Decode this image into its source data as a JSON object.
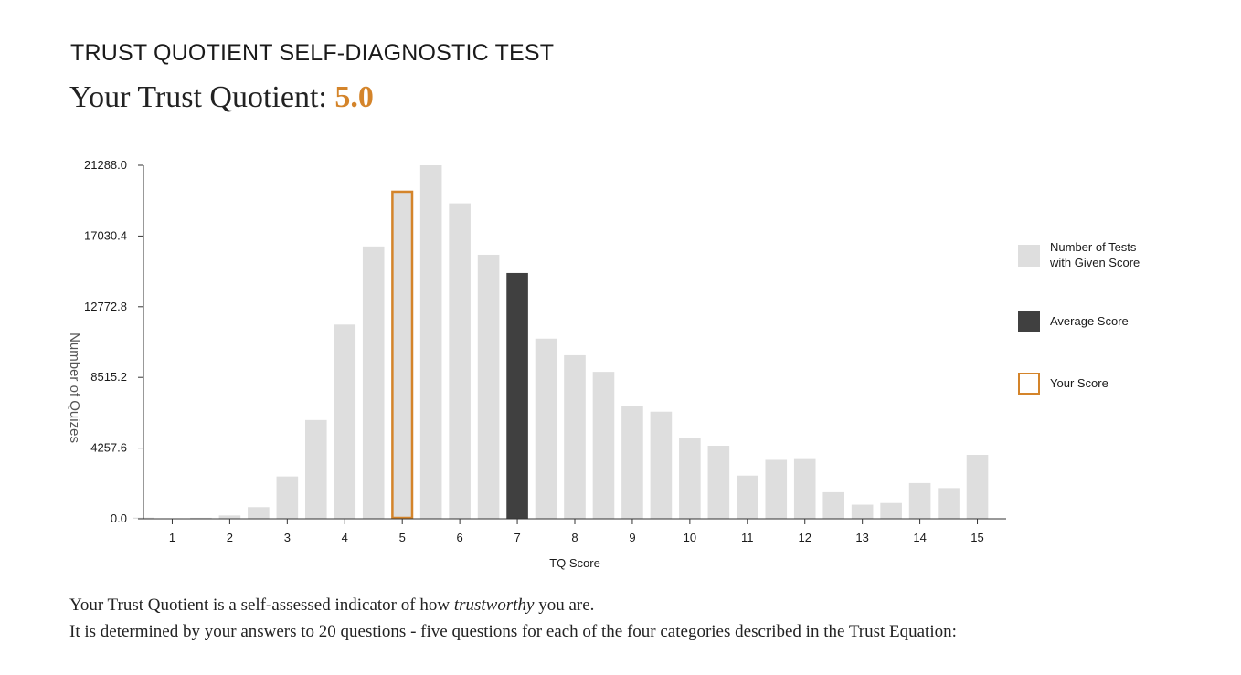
{
  "header": {
    "page_title": "TRUST QUOTIENT SELF-DIAGNOSTIC TEST",
    "tq_label": "Your Trust Quotient: ",
    "tq_value": "5.0"
  },
  "legend": {
    "tests": "Number of Tests with Given Score",
    "average": "Average Score",
    "yours": "Your Score"
  },
  "description": {
    "line1_before": "Your Trust Quotient is a self-assessed indicator of how ",
    "line1_emph": "trustworthy",
    "line1_after": " you are.",
    "line2": "It is determined by your answers to 20 questions - five questions for each of the four categories described in the Trust Equation:"
  },
  "colors": {
    "bar": "#dedede",
    "average": "#404040",
    "accent": "#d4842a",
    "axis": "#333333"
  },
  "chart_data": {
    "type": "bar",
    "xlabel": "TQ Score",
    "ylabel": "Number of Quizes",
    "ylim": [
      0,
      21288
    ],
    "yticks": [
      "0.0",
      "4257.6",
      "8515.2",
      "12772.8",
      "17030.4",
      "21288.0"
    ],
    "xticks": [
      "1",
      "2",
      "3",
      "4",
      "5",
      "6",
      "7",
      "8",
      "9",
      "10",
      "11",
      "12",
      "13",
      "14",
      "15"
    ],
    "xlim": [
      0.5,
      15.5
    ],
    "legend_position": "right",
    "your_score": 5.0,
    "average_score": 7.0,
    "x": [
      0.5,
      1.0,
      1.5,
      2.0,
      2.5,
      3.0,
      3.5,
      4.0,
      4.5,
      5.0,
      5.5,
      6.0,
      6.5,
      7.0,
      7.5,
      8.0,
      8.5,
      9.0,
      9.5,
      10.0,
      10.5,
      11.0,
      11.5,
      12.0,
      12.5,
      13.0,
      13.5,
      14.0,
      14.5,
      15.0
    ],
    "values": [
      70,
      30,
      60,
      200,
      700,
      2550,
      5950,
      11700,
      16400,
      19750,
      21288,
      19000,
      15900,
      14800,
      10850,
      9850,
      8850,
      6800,
      6450,
      4850,
      4400,
      2600,
      3550,
      3650,
      1600,
      850,
      950,
      2150,
      1850,
      3850
    ]
  }
}
